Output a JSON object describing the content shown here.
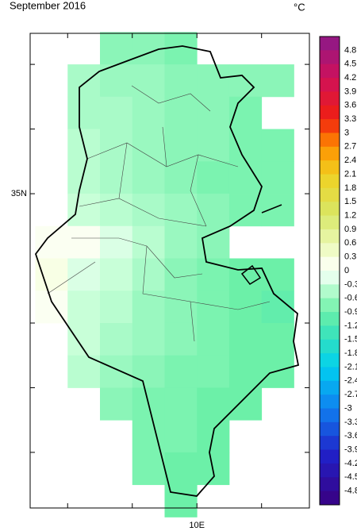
{
  "title": "September 2016",
  "unit": "°C",
  "map": {
    "xlim": [
      7.42,
      11.74
    ],
    "ylim": [
      30.14,
      37.48
    ],
    "xtick_marks": [
      8,
      9,
      10,
      11
    ],
    "xtick_labels": [
      {
        "value": 10,
        "label": "10E"
      }
    ],
    "ytick_marks": [
      31,
      32,
      33,
      35,
      36,
      37
    ],
    "ytick_labels": [
      {
        "value": 35,
        "label": "35N"
      }
    ],
    "cell_size": 0.5,
    "cells": [
      {
        "lat": 37.25,
        "lon_start": 8.75,
        "values": [
          -0.7,
          -0.7,
          -0.8
        ]
      },
      {
        "lat": 36.75,
        "lon_start": 7.75,
        "values": [
          null,
          -0.5,
          -0.6,
          -0.6,
          -0.7,
          -0.7,
          -0.7,
          -0.7
        ]
      },
      {
        "lat": 36.25,
        "lon_start": 8.25,
        "values": [
          -0.5,
          -0.5,
          -0.6,
          -0.7,
          -0.7,
          -0.8
        ]
      },
      {
        "lat": 35.75,
        "lon_start": 8.25,
        "values": [
          -0.4,
          -0.5,
          -0.6,
          -0.7,
          -0.7,
          -0.8,
          -0.8
        ]
      },
      {
        "lat": 35.25,
        "lon_start": 8.25,
        "values": [
          -0.4,
          -0.5,
          -0.6,
          -0.7,
          -0.8,
          -0.8,
          -0.8
        ]
      },
      {
        "lat": 34.75,
        "lon_start": 8.25,
        "values": [
          -0.3,
          -0.4,
          -0.5,
          -0.6,
          -0.7,
          -0.8,
          -0.8
        ]
      },
      {
        "lat": 34.25,
        "lon_start": 7.75,
        "values": [
          0.1,
          0.1,
          -0.2,
          -0.4,
          -0.6,
          -0.7
        ]
      },
      {
        "lat": 33.75,
        "lon_start": 7.75,
        "values": [
          0.2,
          -0.2,
          -0.3,
          -0.5,
          -0.7,
          -0.8,
          -0.9,
          -0.9
        ]
      },
      {
        "lat": 33.25,
        "lon_start": 7.75,
        "values": [
          0.1,
          -0.3,
          -0.4,
          -0.6,
          -0.7,
          -0.8,
          -0.9,
          -1.0
        ]
      },
      {
        "lat": 32.75,
        "lon_start": 8.25,
        "values": [
          -0.3,
          -0.5,
          -0.6,
          -0.7,
          -0.8,
          -0.9,
          -0.9
        ]
      },
      {
        "lat": 32.25,
        "lon_start": 8.25,
        "values": [
          -0.4,
          -0.6,
          -0.7,
          -0.8,
          -0.8,
          -0.9,
          -0.9
        ]
      },
      {
        "lat": 31.75,
        "lon_start": 8.75,
        "values": [
          -0.7,
          -0.8,
          -0.8,
          -0.9,
          -0.9
        ]
      },
      {
        "lat": 31.25,
        "lon_start": 9.25,
        "values": [
          -0.8,
          -0.8,
          -0.9
        ]
      },
      {
        "lat": 30.75,
        "lon_start": 9.25,
        "values": [
          -0.8,
          -0.9,
          -0.9
        ]
      },
      {
        "lat": 30.25,
        "lon_start": 9.75,
        "values": [
          -0.9
        ]
      }
    ]
  },
  "colorbar": {
    "clim": [
      -5.1,
      5.1
    ],
    "ticks": [
      4.8,
      4.5,
      4.2,
      3.9,
      3.6,
      3.3,
      3,
      2.7,
      2.4,
      2.1,
      1.8,
      1.5,
      1.2,
      0.9,
      0.6,
      0.3,
      0,
      -0.3,
      -0.6,
      -0.9,
      -1.2,
      -1.5,
      -1.8,
      -2.1,
      -2.4,
      -2.7,
      -3,
      -3.3,
      -3.6,
      -3.9,
      -4.2,
      -4.5,
      -4.8
    ],
    "colormap": [
      [
        -5.1,
        "#3a0080"
      ],
      [
        -4.0,
        "#2020c8"
      ],
      [
        -3.0,
        "#1080f0"
      ],
      [
        -2.1,
        "#00d0f0"
      ],
      [
        -1.5,
        "#30e0c0"
      ],
      [
        -0.9,
        "#6cf0a8"
      ],
      [
        -0.3,
        "#c8ffd8"
      ],
      [
        0,
        "#ffffff"
      ],
      [
        0.3,
        "#f4ffd8"
      ],
      [
        1.2,
        "#d8e868"
      ],
      [
        2.1,
        "#f0d020"
      ],
      [
        2.7,
        "#ff9000"
      ],
      [
        3.3,
        "#f02010"
      ],
      [
        4.2,
        "#d0105a"
      ],
      [
        5.1,
        "#8a1a8a"
      ]
    ]
  }
}
